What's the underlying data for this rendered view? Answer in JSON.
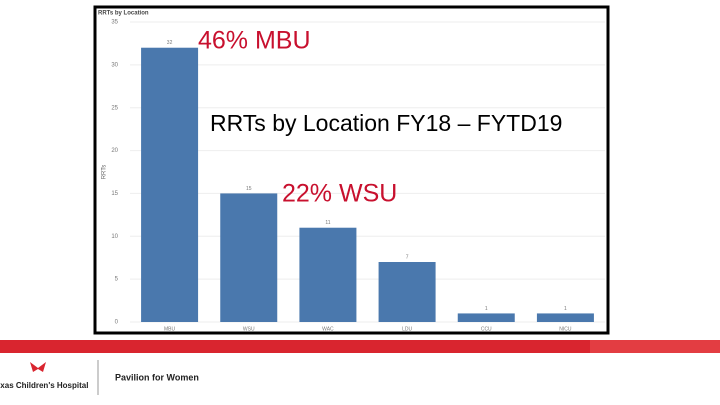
{
  "chart_data": {
    "type": "bar",
    "title": "RRTs by Location",
    "y_label": "RRTs",
    "categories": [
      "MBU",
      "WSU",
      "WAC",
      "LDU",
      "CCU",
      "NICU"
    ],
    "values": [
      32,
      15,
      11,
      7,
      1,
      1
    ],
    "color": "#4a78ad",
    "ylim": [
      0,
      35
    ],
    "yticks": [
      0,
      5,
      10,
      15,
      20,
      25,
      30,
      35
    ],
    "grid": true,
    "annotations": [
      "46% MBU",
      "RRTs by Location FY18 – FYTD19",
      "22% WSU"
    ]
  },
  "footer": {
    "logo_left": "Texas Children's Hospital",
    "logo_right": "Pavilion for Women"
  }
}
